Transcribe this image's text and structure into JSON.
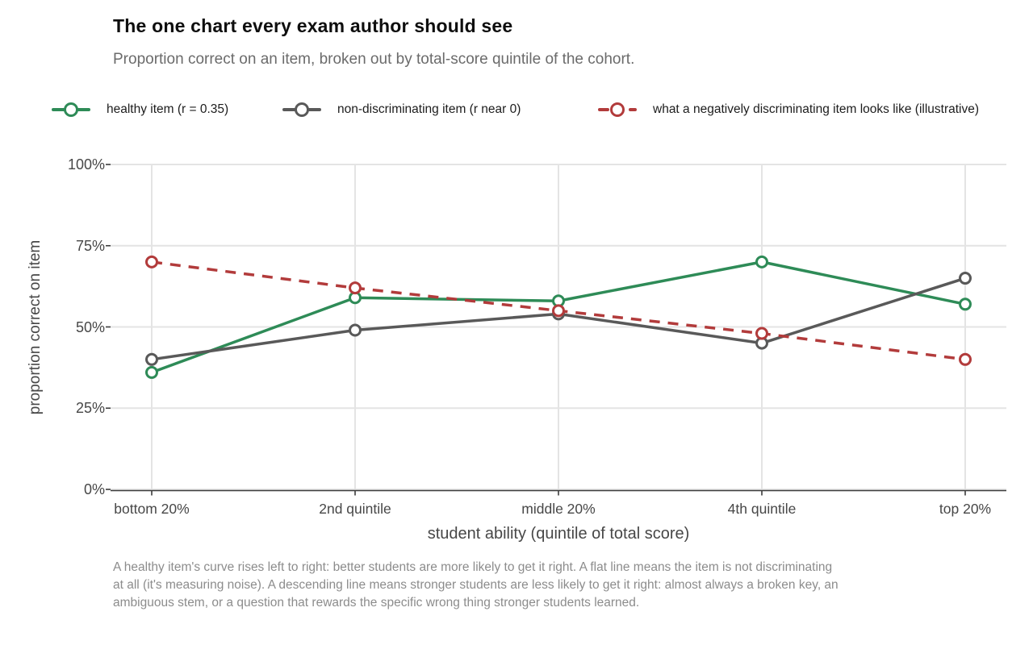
{
  "header": {
    "title": "The one chart every exam author should see",
    "subtitle": "Proportion correct on an item, broken out by total-score quintile of the cohort."
  },
  "legend": [
    {
      "label": "healthy item (r = 0.35)",
      "color": "#2e8b57",
      "dashed": false
    },
    {
      "label": "non-discriminating item (r near 0)",
      "color": "#595959",
      "dashed": false
    },
    {
      "label": "what a negatively discriminating item looks like (illustrative)",
      "color": "#b23b3b",
      "dashed": true
    }
  ],
  "chart_data": {
    "type": "line",
    "title": "The one chart every exam author should see",
    "subtitle": "Proportion correct on an item, broken out by total-score quintile of the cohort.",
    "categories": [
      "bottom 20%",
      "2nd quintile",
      "middle 20%",
      "4th quintile",
      "top 20%"
    ],
    "series": [
      {
        "name": "healthy item (r = 0.35)",
        "color": "#2e8b57",
        "style": "solid",
        "marker": "open-circle",
        "values": [
          36,
          59,
          58,
          70,
          57
        ]
      },
      {
        "name": "non-discriminating item (r near 0)",
        "color": "#595959",
        "style": "solid",
        "marker": "open-circle",
        "values": [
          40,
          49,
          54,
          45,
          65
        ]
      },
      {
        "name": "what a negatively discriminating item looks like (illustrative)",
        "color": "#b23b3b",
        "style": "dashed",
        "marker": "open-circle",
        "values": [
          70,
          62,
          55,
          48,
          40
        ]
      }
    ],
    "xlabel": "student ability (quintile of total score)",
    "ylabel": "proportion correct on item",
    "y_ticks": [
      "0%",
      "25%",
      "50%",
      "75%",
      "100%"
    ],
    "y_tick_values": [
      0,
      25,
      50,
      75,
      100
    ],
    "ylim": [
      0,
      100
    ],
    "grid": true,
    "legend_position": "top",
    "colors": {
      "gridline": "#e4e4e4",
      "axis_line": "#3c3c3c",
      "axis_text": "#474747"
    }
  },
  "caption": "A healthy item's curve rises left to right: better students are more likely to get it right. A flat line means the item is not discriminating at all (it's measuring noise). A descending line means stronger students are less likely to get it right: almost always a broken key, an ambiguous stem, or a question that rewards the specific wrong thing stronger students learned."
}
